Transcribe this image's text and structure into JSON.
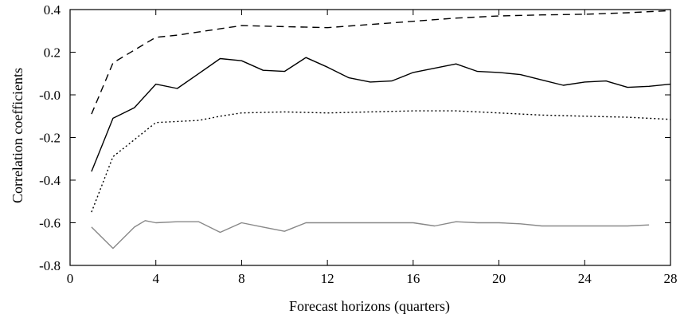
{
  "chart_data": {
    "type": "line",
    "title": "",
    "xlabel": "Forecast horizons (quarters)",
    "ylabel": "Correlation coefficients",
    "xlim": [
      0,
      28
    ],
    "ylim": [
      -0.8,
      0.4
    ],
    "xticks": [
      0,
      4,
      8,
      12,
      16,
      20,
      24,
      28
    ],
    "yticks": [
      -0.8,
      -0.6,
      -0.4,
      -0.2,
      0.0,
      0.2,
      0.4
    ],
    "ytick_labels": [
      "-0.8",
      "-0.6",
      "-0.4",
      "-0.2",
      "-0.0",
      "0.2",
      "0.4"
    ],
    "grid": false,
    "series": [
      {
        "style": "dashed",
        "color": "#000000",
        "x": [
          1,
          2,
          3,
          4,
          5,
          6,
          7,
          8,
          10,
          12,
          14,
          16,
          18,
          20,
          22,
          24,
          26,
          28
        ],
        "y": [
          -0.09,
          0.15,
          0.21,
          0.27,
          0.28,
          0.295,
          0.31,
          0.325,
          0.32,
          0.315,
          0.33,
          0.345,
          0.36,
          0.37,
          0.375,
          0.378,
          0.385,
          0.395
        ]
      },
      {
        "style": "solid",
        "color": "#000000",
        "x": [
          1,
          2,
          3,
          4,
          5,
          6,
          7,
          8,
          9,
          10,
          11,
          12,
          13,
          14,
          15,
          16,
          17,
          18,
          19,
          20,
          21,
          22,
          23,
          24,
          25,
          26,
          27,
          28
        ],
        "y": [
          -0.36,
          -0.11,
          -0.06,
          0.05,
          0.03,
          0.1,
          0.17,
          0.16,
          0.115,
          0.11,
          0.175,
          0.13,
          0.08,
          0.06,
          0.065,
          0.105,
          0.125,
          0.145,
          0.11,
          0.105,
          0.095,
          0.07,
          0.045,
          0.06,
          0.065,
          0.035,
          0.04,
          0.05
        ]
      },
      {
        "style": "dotted",
        "color": "#000000",
        "x": [
          1,
          2,
          3,
          4,
          5,
          6,
          7,
          8,
          10,
          12,
          14,
          16,
          18,
          20,
          22,
          24,
          26,
          28
        ],
        "y": [
          -0.55,
          -0.29,
          -0.21,
          -0.13,
          -0.125,
          -0.12,
          -0.1,
          -0.085,
          -0.08,
          -0.085,
          -0.08,
          -0.075,
          -0.075,
          -0.085,
          -0.095,
          -0.1,
          -0.105,
          -0.115
        ]
      },
      {
        "style": "solid",
        "color": "#888888",
        "x": [
          1,
          2,
          3,
          3.5,
          4,
          5,
          6,
          7,
          8,
          9,
          10,
          11,
          12,
          13,
          14,
          15,
          16,
          17,
          18,
          19,
          20,
          21,
          22,
          23,
          24,
          25,
          26,
          27
        ],
        "y": [
          -0.62,
          -0.72,
          -0.62,
          -0.59,
          -0.6,
          -0.595,
          -0.595,
          -0.645,
          -0.6,
          -0.62,
          -0.64,
          -0.6,
          -0.6,
          -0.6,
          -0.6,
          -0.6,
          -0.6,
          -0.615,
          -0.595,
          -0.6,
          -0.6,
          -0.605,
          -0.615,
          -0.615,
          -0.615,
          -0.615,
          -0.615,
          -0.61
        ]
      }
    ]
  }
}
